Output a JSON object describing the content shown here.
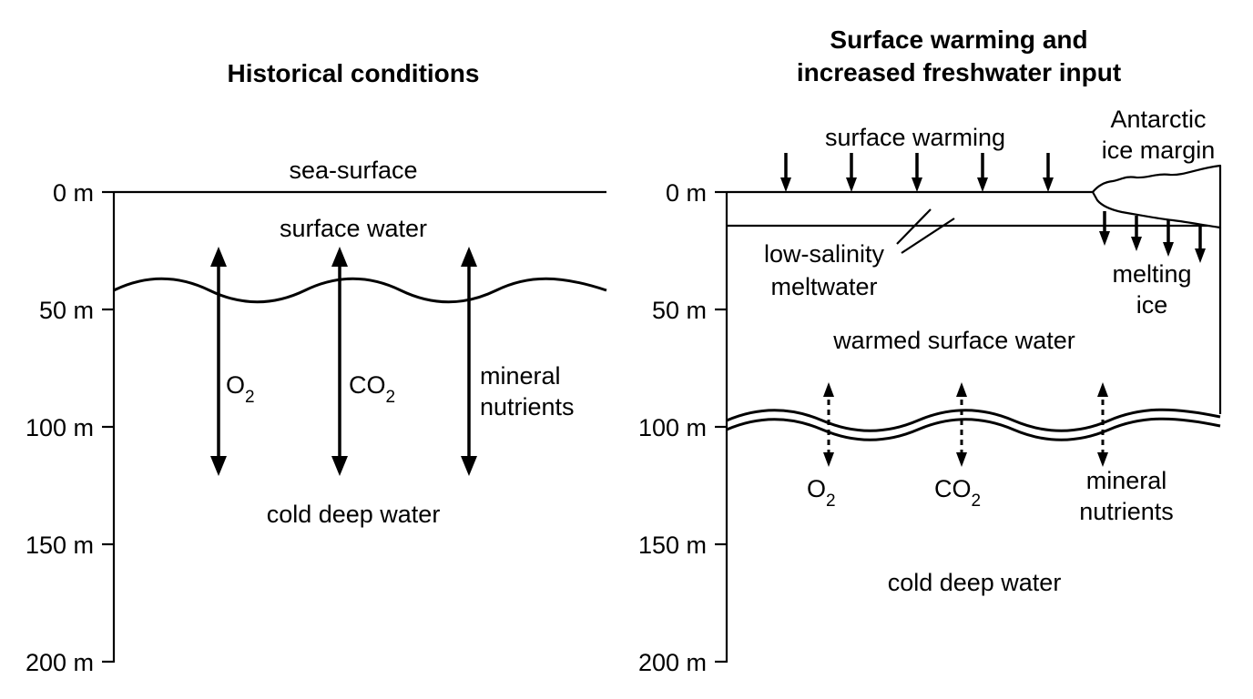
{
  "left_panel": {
    "title": "Historical conditions",
    "depth_ticks": [
      "0 m",
      "50 m",
      "100 m",
      "150 m",
      "200 m"
    ],
    "sea_surface": "sea-surface",
    "surface_water": "surface water",
    "cold_deep_water": "cold deep water",
    "exchange": {
      "o2": {
        "base": "O",
        "sub": "2"
      },
      "co2": {
        "base": "CO",
        "sub": "2"
      },
      "nutrients_line1": "mineral",
      "nutrients_line2": "nutrients"
    }
  },
  "right_panel": {
    "title_line1": "Surface warming and",
    "title_line2": "increased freshwater input",
    "depth_ticks": [
      "0 m",
      "50 m",
      "100 m",
      "150 m",
      "200 m"
    ],
    "surface_warming": "surface warming",
    "ice_margin_line1": "Antarctic",
    "ice_margin_line2": "ice margin",
    "meltwater_line1": "low-salinity",
    "meltwater_line2": "meltwater",
    "melting_ice_line1": "melting",
    "melting_ice_line2": "ice",
    "warmed_surface_water": "warmed surface water",
    "cold_deep_water": "cold deep water",
    "exchange": {
      "o2": {
        "base": "O",
        "sub": "2"
      },
      "co2": {
        "base": "CO",
        "sub": "2"
      },
      "nutrients_line1": "mineral",
      "nutrients_line2": "nutrients"
    }
  }
}
